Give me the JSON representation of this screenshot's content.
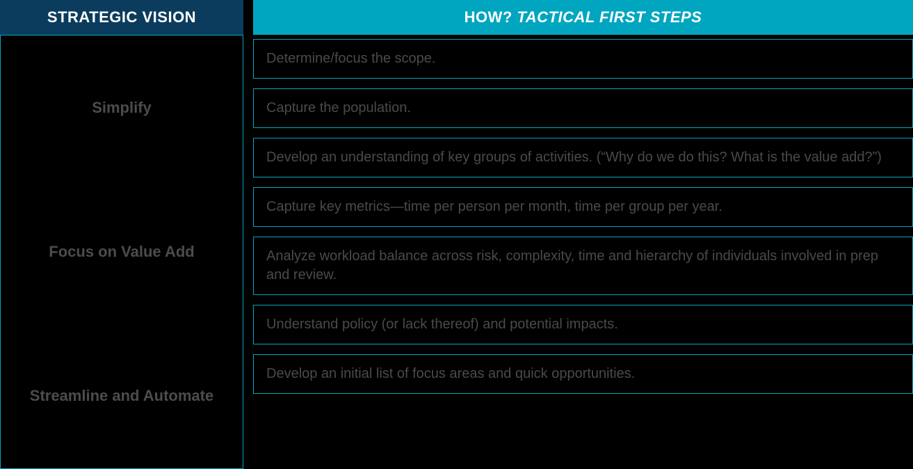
{
  "colors": {
    "left_header_bg": "#0b3c5d",
    "right_header_bg": "#00a6c0",
    "box_border": "#00a6c0",
    "body_bg": "#000000",
    "header_text": "#ffffff",
    "body_text": "#4a4a4a"
  },
  "left": {
    "header": "STRATEGIC VISION",
    "items": [
      "Simplify",
      "Focus on Value Add",
      "Streamline and Automate"
    ]
  },
  "right": {
    "header_how": "HOW? ",
    "header_tactical": "TACTICAL FIRST STEPS",
    "steps": [
      "Determine/focus the scope.",
      "Capture the population.",
      "Develop an understanding of key groups of activities. (“Why do we do this? What is the value add?”)",
      "Capture key metrics—time per person per month, time per group per year.",
      "Analyze workload balance across risk, complexity, time and hierarchy of individuals involved in prep and review.",
      "Understand policy (or lack thereof) and potential impacts.",
      "Develop an initial list of focus areas and quick opportunities."
    ]
  }
}
